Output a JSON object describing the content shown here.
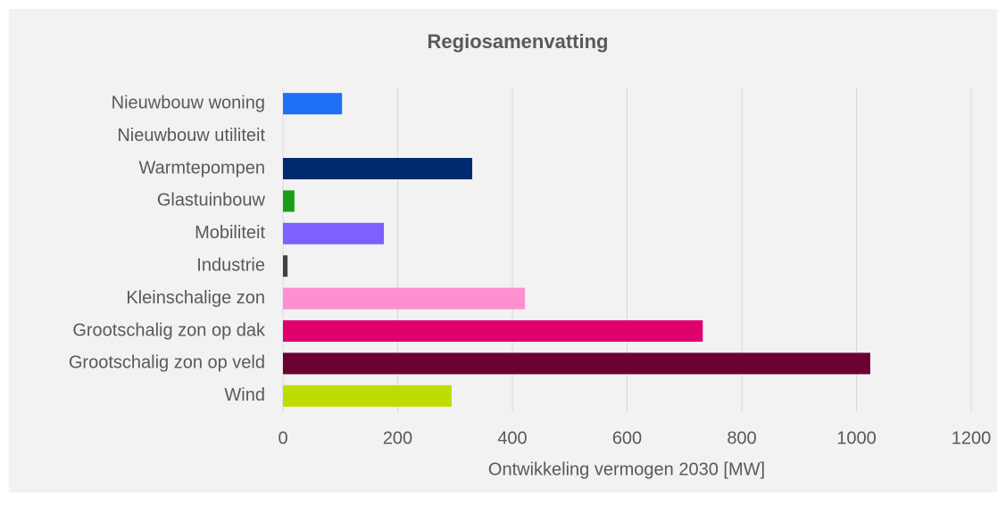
{
  "chart_data": {
    "type": "bar",
    "orientation": "horizontal",
    "title": "Regiosamenvatting",
    "x_label": "Ontwikkeling vermogen 2030 [MW]",
    "categories": [
      "Nieuwbouw woning",
      "Nieuwbouw utiliteit",
      "Warmtepompen",
      "Glastuinbouw",
      "Mobiliteit",
      "Industrie",
      "Kleinschalige zon",
      "Grootschalig zon op dak",
      "Grootschalig zon op veld",
      "Wind"
    ],
    "values": [
      103,
      0,
      330,
      20,
      176,
      8,
      422,
      732,
      1024,
      294
    ],
    "colors": [
      "#1f6ff5",
      "#1f6ff5",
      "#002a6e",
      "#1a9e1a",
      "#7f5fff",
      "#404040",
      "#ff8fd0",
      "#e0006e",
      "#6b0033",
      "#bedc00"
    ],
    "xlim": [
      0,
      1200
    ],
    "xticks": [
      0,
      200,
      400,
      600,
      800,
      1000,
      1200
    ],
    "grid": true
  }
}
